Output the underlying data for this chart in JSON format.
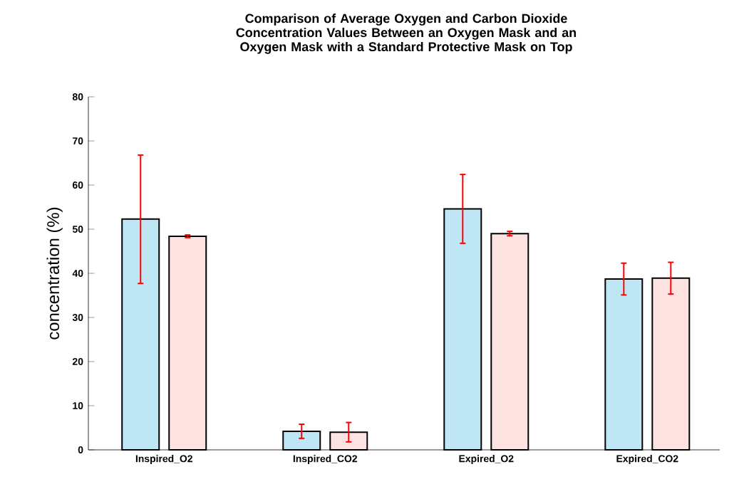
{
  "chart_data": {
    "type": "bar",
    "title": "Comparison of Average Oxygen and Carbon Dioxide Concentration Values Between an Oxygen Mask and an Oxygen Mask with a Standard Protective Mask on Top",
    "ylabel": "concentration (%)",
    "categories": [
      "Inspired_O2",
      "Inspired_CO2",
      "Expired_O2",
      "Expired_CO2"
    ],
    "series": [
      {
        "color": "#bfe6f5",
        "values": [
          52.3,
          4.2,
          54.6,
          38.7
        ],
        "errors": [
          [
            37.7,
            66.8
          ],
          1.6,
          7.8,
          3.6
        ]
      },
      {
        "color": "#fde2e2",
        "values": [
          48.4,
          4.0,
          49.0,
          38.9
        ],
        "errors": [
          0.3,
          2.2,
          0.5,
          3.6
        ]
      }
    ],
    "ylim": [
      0,
      80
    ],
    "yticks": [
      0,
      10,
      20,
      30,
      40,
      50,
      60,
      70,
      80
    ],
    "grid": false
  }
}
